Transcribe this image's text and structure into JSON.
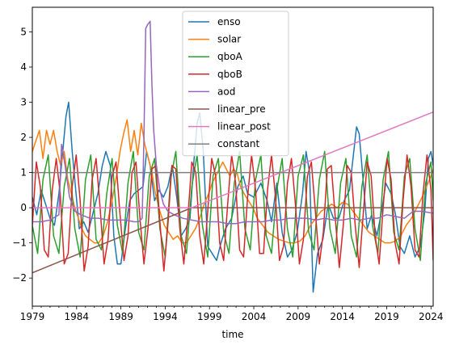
{
  "chart_data": {
    "type": "line",
    "title": "",
    "xlabel": "time",
    "ylabel": "",
    "xlim": [
      1979.0,
      2024.25
    ],
    "ylim": [
      -2.8,
      5.7
    ],
    "x_ticks": [
      1979,
      1984,
      1989,
      1994,
      1999,
      2004,
      2009,
      2014,
      2019,
      2024
    ],
    "y_ticks": [
      -2,
      -1,
      0,
      1,
      2,
      3,
      4,
      5
    ],
    "grid": false,
    "legend_position": "upper center",
    "colors": {
      "enso": "#1f77b4",
      "solar": "#ff7f0e",
      "qboA": "#2ca02c",
      "qboB": "#d62728",
      "aod": "#9467bd",
      "linear_pre": "#8c564b",
      "linear_post": "#e377c2",
      "constant": "#7f7f7f"
    },
    "series": [
      {
        "name": "enso",
        "x": [
          1979.0,
          1979.5,
          1980.0,
          1980.5,
          1981.0,
          1981.5,
          1982.0,
          1982.4,
          1982.8,
          1983.1,
          1983.5,
          1983.9,
          1984.3,
          1984.8,
          1985.3,
          1985.8,
          1986.4,
          1986.9,
          1987.3,
          1987.8,
          1988.2,
          1988.6,
          1989.0,
          1989.5,
          1990.0,
          1990.5,
          1991.0,
          1991.5,
          1991.9,
          1992.3,
          1992.8,
          1993.3,
          1993.8,
          1994.3,
          1994.8,
          1995.3,
          1995.8,
          1996.3,
          1996.8,
          1997.2,
          1997.6,
          1997.9,
          1998.3,
          1998.8,
          1999.3,
          1999.8,
          2000.3,
          2000.8,
          2001.5,
          2002.2,
          2002.8,
          2003.3,
          2004.0,
          2004.8,
          2005.5,
          2006.0,
          2006.6,
          2007.2,
          2007.8,
          2008.3,
          2008.9,
          2009.5,
          2009.9,
          2010.3,
          2010.7,
          2011.2,
          2011.8,
          2012.4,
          2013.0,
          2013.6,
          2014.2,
          2014.8,
          2015.2,
          2015.6,
          2015.9,
          2016.3,
          2016.8,
          2017.3,
          2017.9,
          2018.5,
          2018.9,
          2019.5,
          2020.0,
          2020.5,
          2021.0,
          2021.6,
          2022.2,
          2022.8,
          2023.3,
          2023.7,
          2024.0,
          2024.25
        ],
        "y": [
          0.3,
          -0.2,
          0.5,
          0.1,
          -0.3,
          -0.5,
          0.4,
          1.5,
          2.6,
          3.0,
          1.6,
          0.5,
          -0.6,
          -0.4,
          -0.7,
          -0.2,
          0.4,
          1.2,
          1.6,
          1.2,
          -0.8,
          -1.6,
          -1.6,
          -0.6,
          0.2,
          0.4,
          0.5,
          0.6,
          1.6,
          1.2,
          0.2,
          0.5,
          0.3,
          0.6,
          1.2,
          0.3,
          -0.8,
          -0.6,
          -0.3,
          1.2,
          2.4,
          2.7,
          1.6,
          -1.1,
          -1.3,
          -1.5,
          -1.0,
          -0.6,
          -0.3,
          0.6,
          0.9,
          0.4,
          0.3,
          0.7,
          0.2,
          -0.4,
          0.7,
          -0.7,
          -1.4,
          -1.2,
          -0.7,
          0.4,
          1.6,
          1.0,
          -2.4,
          -1.3,
          -0.9,
          0.1,
          -0.3,
          -0.3,
          0.2,
          0.5,
          1.4,
          2.3,
          2.1,
          0.9,
          -0.6,
          -0.2,
          -0.8,
          0.0,
          0.7,
          0.4,
          -0.2,
          -1.1,
          -1.3,
          -0.8,
          -1.4,
          -1.1,
          -0.1,
          1.4,
          1.6,
          1.2
        ]
      },
      {
        "name": "solar",
        "x": [
          1979.0,
          1979.4,
          1979.8,
          1980.2,
          1980.6,
          1981.0,
          1981.4,
          1981.8,
          1982.2,
          1982.6,
          1983.0,
          1983.4,
          1983.8,
          1984.2,
          1984.6,
          1985.0,
          1985.5,
          1986.0,
          1986.5,
          1987.0,
          1987.5,
          1988.0,
          1988.5,
          1988.9,
          1989.3,
          1989.7,
          1990.1,
          1990.5,
          1990.9,
          1991.3,
          1991.7,
          1992.1,
          1992.5,
          1992.9,
          1993.4,
          1993.9,
          1994.4,
          1994.9,
          1995.4,
          1995.9,
          1996.4,
          1996.9,
          1997.4,
          1997.9,
          1998.4,
          1998.9,
          1999.3,
          1999.7,
          2000.1,
          2000.5,
          2000.9,
          2001.3,
          2001.7,
          2002.1,
          2002.5,
          2002.9,
          2003.4,
          2003.9,
          2004.4,
          2005.0,
          2005.6,
          2006.2,
          2006.8,
          2007.4,
          2008.0,
          2008.6,
          2009.2,
          2009.8,
          2010.4,
          2011.0,
          2011.6,
          2012.2,
          2012.8,
          2013.4,
          2014.0,
          2014.6,
          2015.2,
          2015.8,
          2016.4,
          2017.0,
          2017.6,
          2018.2,
          2018.8,
          2019.4,
          2020.0,
          2020.6,
          2021.2,
          2021.8,
          2022.4,
          2023.0,
          2023.5,
          2024.0,
          2024.25
        ],
        "y": [
          1.6,
          1.9,
          2.2,
          1.4,
          2.2,
          1.8,
          2.2,
          1.6,
          1.2,
          1.6,
          0.8,
          0.4,
          0.0,
          -0.3,
          -0.6,
          -0.8,
          -0.9,
          -1.0,
          -1.0,
          -0.8,
          -0.4,
          0.2,
          0.9,
          1.6,
          2.1,
          2.5,
          1.6,
          2.2,
          1.5,
          2.4,
          1.8,
          1.4,
          1.0,
          0.4,
          -0.1,
          -0.5,
          -0.7,
          -0.9,
          -0.8,
          -1.0,
          -1.0,
          -0.8,
          -0.6,
          -0.3,
          0.1,
          0.4,
          0.7,
          0.9,
          1.1,
          1.3,
          1.1,
          0.9,
          1.1,
          1.0,
          0.6,
          0.4,
          0.2,
          0.0,
          -0.3,
          -0.5,
          -0.7,
          -0.8,
          -0.9,
          -0.95,
          -1.0,
          -1.0,
          -0.95,
          -0.8,
          -0.5,
          -0.3,
          -0.1,
          0.0,
          0.1,
          0.0,
          0.15,
          0.1,
          -0.1,
          -0.3,
          -0.5,
          -0.7,
          -0.8,
          -0.9,
          -1.0,
          -1.0,
          -0.95,
          -0.8,
          -0.5,
          -0.3,
          0.0,
          0.3,
          0.6,
          0.9,
          1.1
        ]
      },
      {
        "name": "qboA",
        "x": [
          1979.0,
          1979.6,
          1980.2,
          1980.8,
          1981.4,
          1982.0,
          1982.6,
          1983.2,
          1983.8,
          1984.4,
          1985.0,
          1985.6,
          1986.2,
          1986.8,
          1987.4,
          1988.0,
          1988.6,
          1989.2,
          1989.8,
          1990.4,
          1991.0,
          1991.6,
          1992.2,
          1992.8,
          1993.4,
          1994.0,
          1994.6,
          1995.2,
          1995.8,
          1996.4,
          1997.0,
          1997.6,
          1998.2,
          1998.8,
          1999.4,
          2000.0,
          2000.6,
          2001.2,
          2001.8,
          2002.4,
          2003.0,
          2003.6,
          2004.2,
          2004.8,
          2005.4,
          2006.0,
          2006.6,
          2007.2,
          2007.8,
          2008.4,
          2009.0,
          2009.6,
          2010.2,
          2010.8,
          2011.4,
          2012.0,
          2012.6,
          2013.2,
          2013.8,
          2014.4,
          2015.0,
          2015.6,
          2016.2,
          2016.8,
          2017.4,
          2018.0,
          2018.6,
          2019.2,
          2019.8,
          2020.4,
          2021.0,
          2021.6,
          2022.2,
          2022.8,
          2023.4,
          2024.0,
          2024.25
        ],
        "y": [
          -0.5,
          -1.3,
          0.8,
          1.5,
          -0.8,
          -1.3,
          0.6,
          1.4,
          -0.6,
          -1.4,
          0.8,
          1.5,
          -0.9,
          -1.2,
          0.4,
          1.4,
          -0.5,
          -1.3,
          0.7,
          1.6,
          -0.7,
          -1.2,
          0.9,
          1.4,
          -0.6,
          -1.4,
          0.8,
          1.6,
          -0.8,
          -1.3,
          0.6,
          1.5,
          -0.5,
          -1.4,
          0.9,
          1.4,
          -0.7,
          -1.3,
          0.7,
          1.6,
          -0.6,
          -1.2,
          0.8,
          1.5,
          -0.8,
          -1.3,
          0.5,
          1.4,
          -0.6,
          -1.4,
          0.9,
          1.5,
          -0.7,
          -1.2,
          0.8,
          1.6,
          -0.6,
          -1.3,
          0.7,
          1.4,
          -0.8,
          -1.4,
          0.6,
          1.5,
          -0.5,
          -1.3,
          0.8,
          1.6,
          -0.7,
          -1.2,
          0.9,
          1.4,
          -0.6,
          -1.5,
          0.7,
          1.3,
          0.2
        ]
      },
      {
        "name": "qboB",
        "x": [
          1979.0,
          1979.45,
          1979.9,
          1980.35,
          1980.8,
          1981.25,
          1981.7,
          1982.15,
          1982.6,
          1983.05,
          1983.5,
          1983.95,
          1984.4,
          1984.85,
          1985.3,
          1985.75,
          1986.2,
          1986.65,
          1987.1,
          1987.55,
          1988.0,
          1988.45,
          1988.9,
          1989.35,
          1989.8,
          1990.25,
          1990.7,
          1991.15,
          1991.6,
          1992.05,
          1992.5,
          1992.95,
          1993.4,
          1993.85,
          1994.3,
          1994.75,
          1995.2,
          1995.65,
          1996.1,
          1996.55,
          1997.0,
          1997.45,
          1997.9,
          1998.35,
          1998.8,
          1999.25,
          1999.7,
          2000.15,
          2000.6,
          2001.05,
          2001.5,
          2001.95,
          2002.4,
          2002.85,
          2003.3,
          2003.75,
          2004.2,
          2004.65,
          2005.1,
          2005.55,
          2006.0,
          2006.45,
          2006.9,
          2007.35,
          2007.8,
          2008.25,
          2008.7,
          2009.15,
          2009.6,
          2010.05,
          2010.5,
          2010.95,
          2011.4,
          2011.85,
          2012.3,
          2012.75,
          2013.2,
          2013.65,
          2014.1,
          2014.55,
          2015.0,
          2015.45,
          2015.9,
          2016.35,
          2016.8,
          2017.25,
          2017.7,
          2018.15,
          2018.6,
          2019.05,
          2019.5,
          2019.95,
          2020.4,
          2020.85,
          2021.3,
          2021.75,
          2022.2,
          2022.65,
          2023.1,
          2023.55,
          2024.0,
          2024.25
        ],
        "y": [
          -0.5,
          1.3,
          0.6,
          -1.2,
          -1.4,
          0.5,
          1.4,
          0.4,
          -1.6,
          -1.3,
          0.6,
          1.5,
          0.2,
          -1.8,
          -1.1,
          0.8,
          1.4,
          0.0,
          -1.6,
          -0.9,
          0.9,
          1.3,
          -0.2,
          -1.5,
          -0.8,
          1.0,
          1.3,
          -0.3,
          -1.6,
          -0.6,
          1.1,
          1.2,
          -0.4,
          -1.8,
          -0.5,
          1.2,
          1.1,
          -0.6,
          -1.6,
          -0.3,
          1.3,
          1.0,
          -0.8,
          -1.6,
          -0.1,
          1.4,
          0.9,
          -1.0,
          -1.5,
          0.1,
          1.5,
          0.7,
          -1.2,
          -1.4,
          0.3,
          1.5,
          0.5,
          -1.3,
          -1.3,
          0.5,
          1.5,
          0.3,
          -1.5,
          -1.1,
          0.7,
          1.4,
          0.1,
          -1.6,
          -0.9,
          0.9,
          1.3,
          -0.1,
          -1.6,
          -0.7,
          1.1,
          1.2,
          -0.3,
          -1.7,
          -0.5,
          1.2,
          1.0,
          -0.5,
          -1.7,
          -0.2,
          1.3,
          0.9,
          -0.8,
          -1.6,
          0.0,
          1.4,
          0.8,
          -1.0,
          -1.6,
          0.2,
          1.5,
          0.6,
          -1.2,
          -1.4,
          0.4,
          1.5,
          0.5,
          -1.5
        ]
      },
      {
        "name": "aod",
        "x": [
          1979.0,
          1980.0,
          1981.0,
          1982.0,
          1982.3,
          1982.7,
          1983.2,
          1983.8,
          1984.5,
          1985.5,
          1986.5,
          1987.5,
          1988.5,
          1989.5,
          1990.5,
          1991.0,
          1991.4,
          1991.6,
          1991.8,
          1992.0,
          1992.3,
          1992.5,
          1992.7,
          1993.0,
          1993.4,
          1993.8,
          1994.3,
          1995.0,
          1996.0,
          1997.0,
          1998.0,
          1999.0,
          2000.0,
          2001.0,
          2002.0,
          2003.0,
          2004.0,
          2005.0,
          2006.0,
          2007.0,
          2008.0,
          2009.0,
          2010.0,
          2011.0,
          2012.0,
          2013.0,
          2014.0,
          2015.0,
          2016.0,
          2017.0,
          2018.0,
          2019.0,
          2020.0,
          2021.0,
          2022.0,
          2023.0,
          2024.0,
          2024.25
        ],
        "y": [
          -0.4,
          -0.4,
          -0.35,
          -0.2,
          1.8,
          1.2,
          0.3,
          -0.1,
          -0.2,
          -0.3,
          -0.3,
          -0.35,
          -0.35,
          -0.35,
          -0.4,
          -0.4,
          -0.3,
          2.0,
          5.1,
          5.2,
          5.3,
          3.5,
          2.2,
          1.2,
          0.5,
          0.1,
          -0.1,
          -0.2,
          -0.3,
          -0.35,
          -0.4,
          -0.4,
          -0.4,
          -0.45,
          -0.45,
          -0.4,
          -0.4,
          -0.4,
          -0.35,
          -0.35,
          -0.3,
          -0.3,
          -0.3,
          -0.35,
          -0.3,
          -0.35,
          -0.35,
          -0.3,
          -0.35,
          -0.3,
          -0.3,
          -0.2,
          -0.25,
          -0.3,
          -0.1,
          -0.1,
          -0.15,
          -0.15
        ]
      },
      {
        "name": "linear_pre",
        "x": [
          1979.0,
          1997.0,
          1997.0,
          2024.25
        ],
        "y": [
          -1.85,
          0.0,
          0.0,
          0.0
        ]
      },
      {
        "name": "linear_post",
        "x": [
          1979.0,
          1997.0,
          2024.25
        ],
        "y": [
          0.0,
          0.0,
          2.72
        ]
      },
      {
        "name": "constant",
        "x": [
          1979.0,
          2024.25
        ],
        "y": [
          1.0,
          1.0
        ]
      }
    ]
  }
}
